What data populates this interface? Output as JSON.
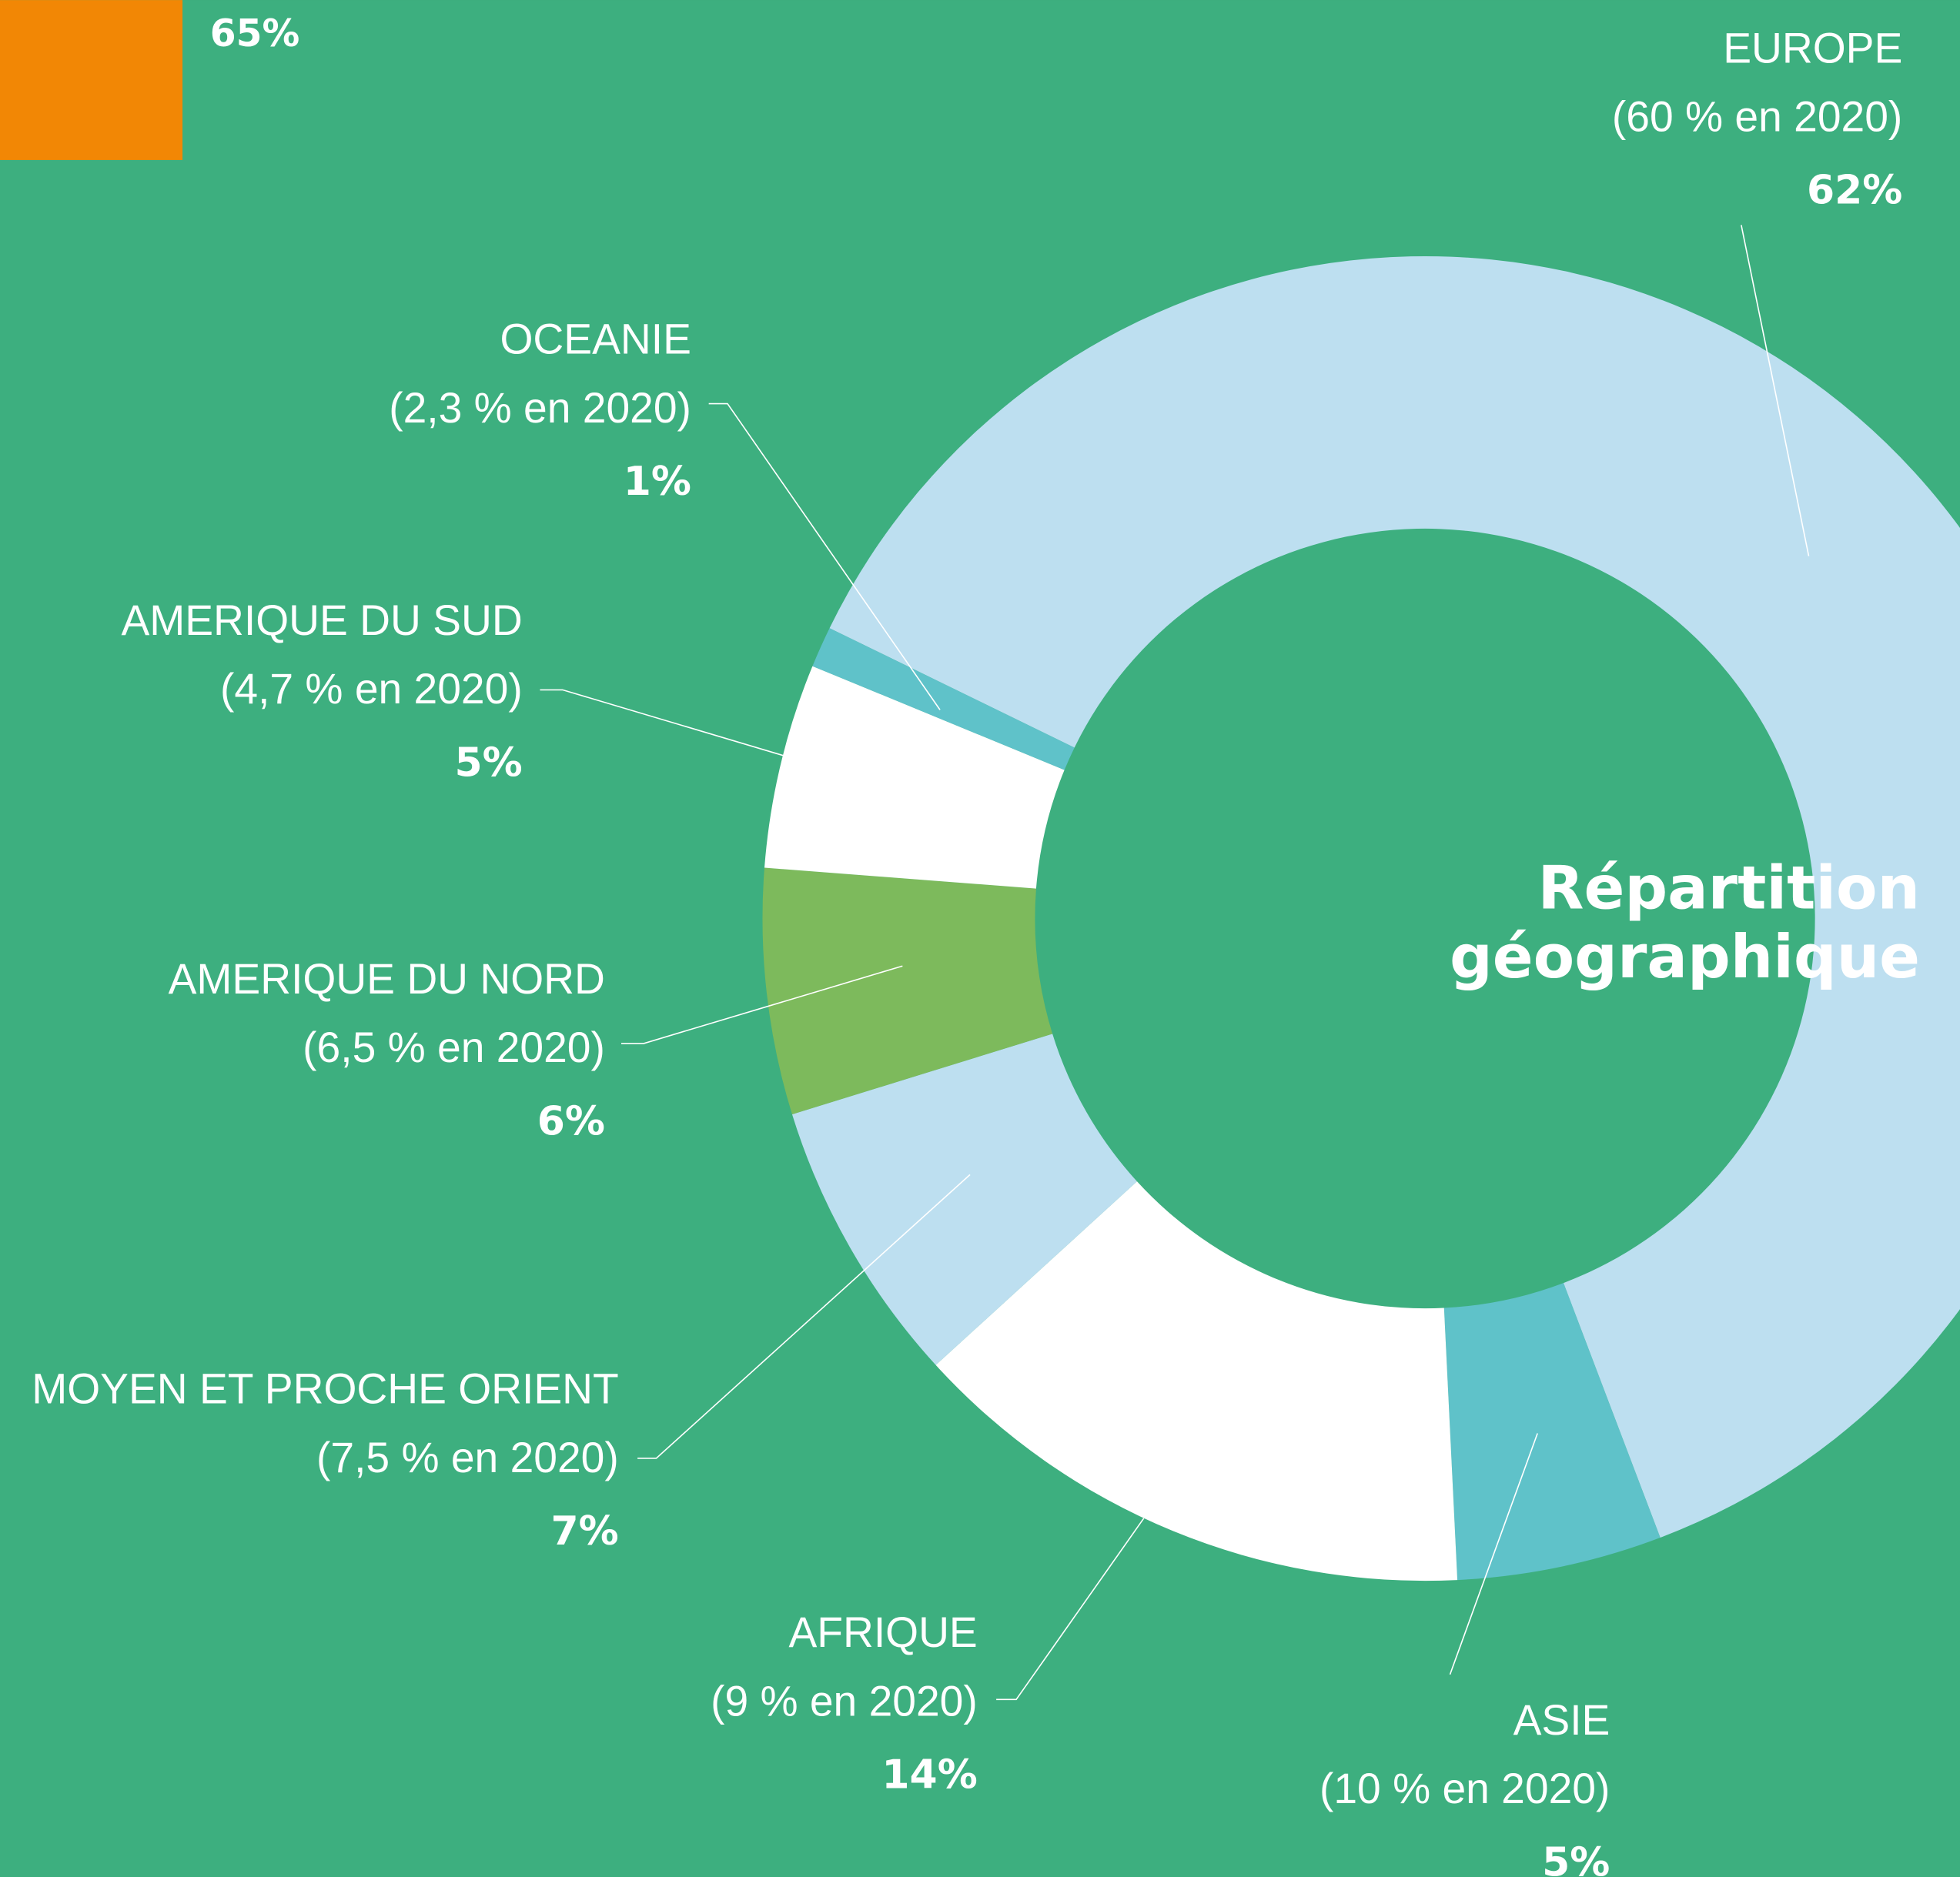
{
  "partial_legend": {
    "color": "#f28705",
    "label": "65%"
  },
  "chart_data": {
    "type": "donut",
    "title_lines": [
      "Répartition",
      "géographique"
    ],
    "categories": [
      "EUROPE",
      "ASIE",
      "AFRIQUE",
      "MOYEN ET PROCHE ORIENT",
      "AMERIQUE DU NORD",
      "AMERIQUE DU SUD",
      "OCEANIE"
    ],
    "secondary_labels": [
      "(60 % en 2020)",
      "(10 % en 2020)",
      "(9 % en 2020)",
      "(7,5 % en 2020)",
      "(6,5 % en 2020)",
      "(4,7 % en 2020)",
      "(2,3 % en 2020)"
    ],
    "values": [
      62,
      5,
      14,
      7,
      6,
      5,
      1
    ],
    "value_labels": [
      "62%",
      "5%",
      "14%",
      "7%",
      "6%",
      "5%",
      "1%"
    ],
    "colors": [
      "#bddff0",
      "#5fc2c9",
      "#ffffff",
      "#bddff0",
      "#7dba5c",
      "#ffffff",
      "#5fc2c9"
    ]
  }
}
